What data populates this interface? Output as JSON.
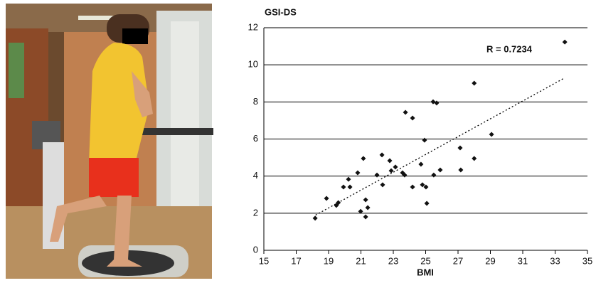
{
  "chart_data": {
    "type": "scatter",
    "y_label": "GSI-DS",
    "x_label": "BMI",
    "annotation": "R = 0.7234",
    "color": "#111111",
    "x": [
      18.17,
      18.87,
      19.48,
      19.6,
      19.92,
      20.23,
      20.32,
      20.8,
      21.15,
      20.98,
      21.29,
      21.29,
      21.42,
      21.99,
      22.3,
      22.34,
      22.78,
      22.87,
      23.13,
      23.57,
      23.75,
      23.7,
      24.19,
      24.19,
      24.71,
      24.8,
      24.93,
      25.02,
      25.07,
      25.46,
      25.5,
      25.68,
      25.9,
      27.13,
      27.17,
      28.0,
      28.0,
      29.07,
      33.6
    ],
    "values": [
      1.73,
      2.8,
      2.42,
      2.57,
      3.41,
      3.83,
      3.41,
      4.18,
      4.95,
      2.1,
      2.72,
      1.8,
      2.3,
      4.06,
      5.14,
      3.53,
      4.83,
      4.29,
      4.49,
      4.18,
      7.44,
      4.06,
      7.13,
      3.41,
      4.64,
      3.53,
      5.94,
      3.41,
      2.53,
      8.01,
      4.06,
      7.94,
      4.33,
      5.52,
      4.33,
      9.01,
      4.95,
      6.25,
      11.23
    ],
    "trendline": {
      "x": [
        18.2,
        33.6
      ],
      "values": [
        1.9,
        9.3
      ]
    },
    "xlim": [
      15,
      35
    ],
    "xticks": [
      15,
      17,
      19,
      21,
      23,
      25,
      27,
      29,
      31,
      33,
      35
    ],
    "ylim": [
      0,
      12
    ],
    "yticks": [
      0,
      2,
      4,
      6,
      8,
      10,
      12
    ],
    "grid": true
  }
}
